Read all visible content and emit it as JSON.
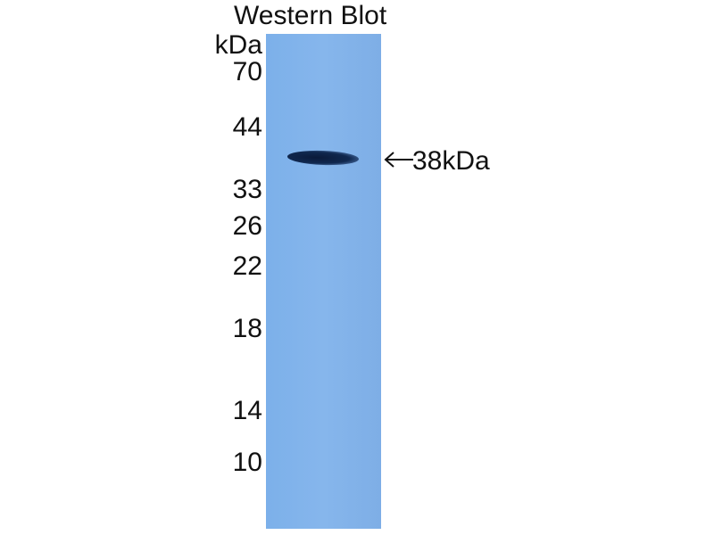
{
  "title": "Western Blot",
  "unit": "kDa",
  "markers": [
    "70",
    "44",
    "33",
    "26",
    "22",
    "18",
    "14",
    "10"
  ],
  "band_label": "38kDa",
  "colors": {
    "membrane": "#80b1e9",
    "band": "#0f2550"
  }
}
